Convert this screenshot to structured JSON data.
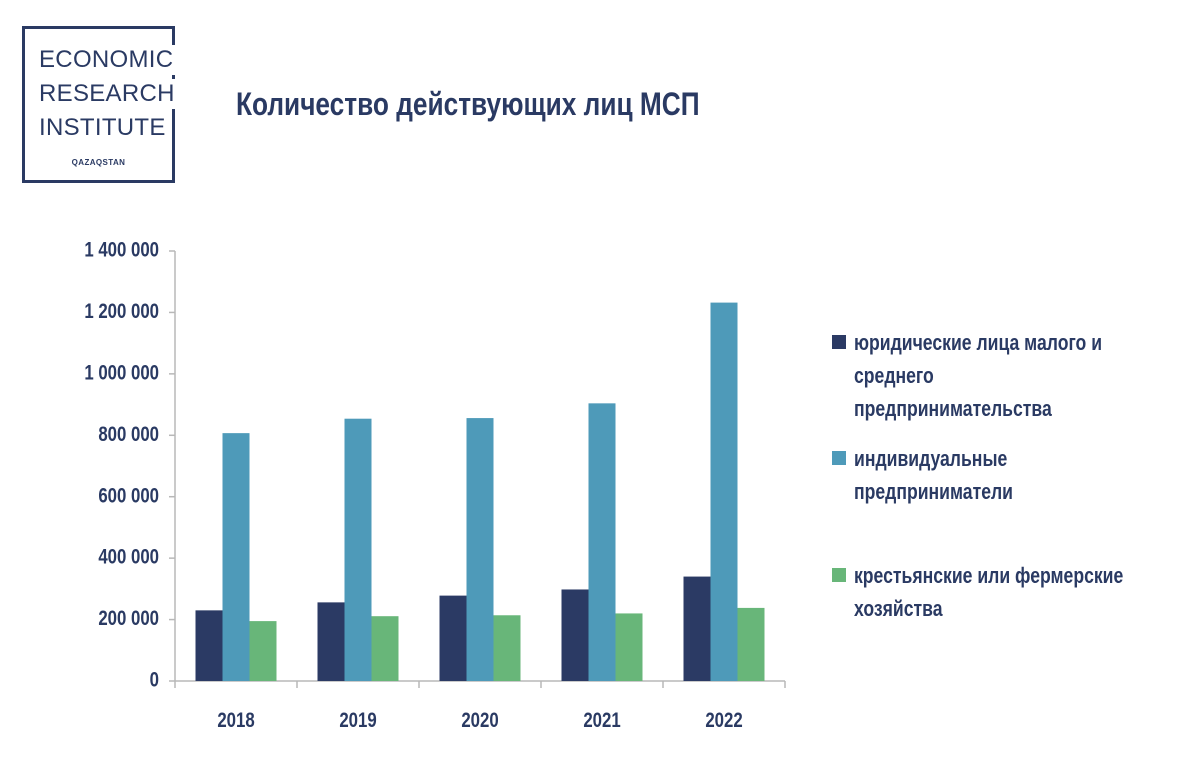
{
  "logo": {
    "line1": "ECONOMIC",
    "line2": "RESEARCH",
    "line3": "INSTITUTE",
    "sub": "QAZAQSTAN"
  },
  "colors": {
    "text": "#2a3a63",
    "axis": "#b8b8b8",
    "series": [
      "#2b3a64",
      "#4e9ab9",
      "#68b679"
    ]
  },
  "chart_data": {
    "type": "bar",
    "title": "Количество действующих лиц МСП",
    "xlabel": "",
    "ylabel": "",
    "ylim": [
      0,
      1400000
    ],
    "yticks": [
      0,
      200000,
      400000,
      600000,
      800000,
      1000000,
      1200000,
      1400000
    ],
    "ytick_labels": [
      "0",
      "200 000",
      "400 000",
      "600 000",
      "800 000",
      "1 000 000",
      "1 200 000",
      "1 400 000"
    ],
    "grid": false,
    "legend_position": "right",
    "categories": [
      "2018",
      "2019",
      "2020",
      "2021",
      "2022"
    ],
    "series": [
      {
        "name": "юридические лица малого и среднего предпринимательства",
        "values": [
          230000,
          256000,
          278000,
          298000,
          340000
        ]
      },
      {
        "name": "индивидуальные предприниматели",
        "values": [
          807000,
          854000,
          856000,
          904000,
          1232000
        ]
      },
      {
        "name": "крестьянские или фермерские хозяйства",
        "values": [
          195000,
          211000,
          214000,
          220000,
          238000
        ]
      }
    ]
  }
}
